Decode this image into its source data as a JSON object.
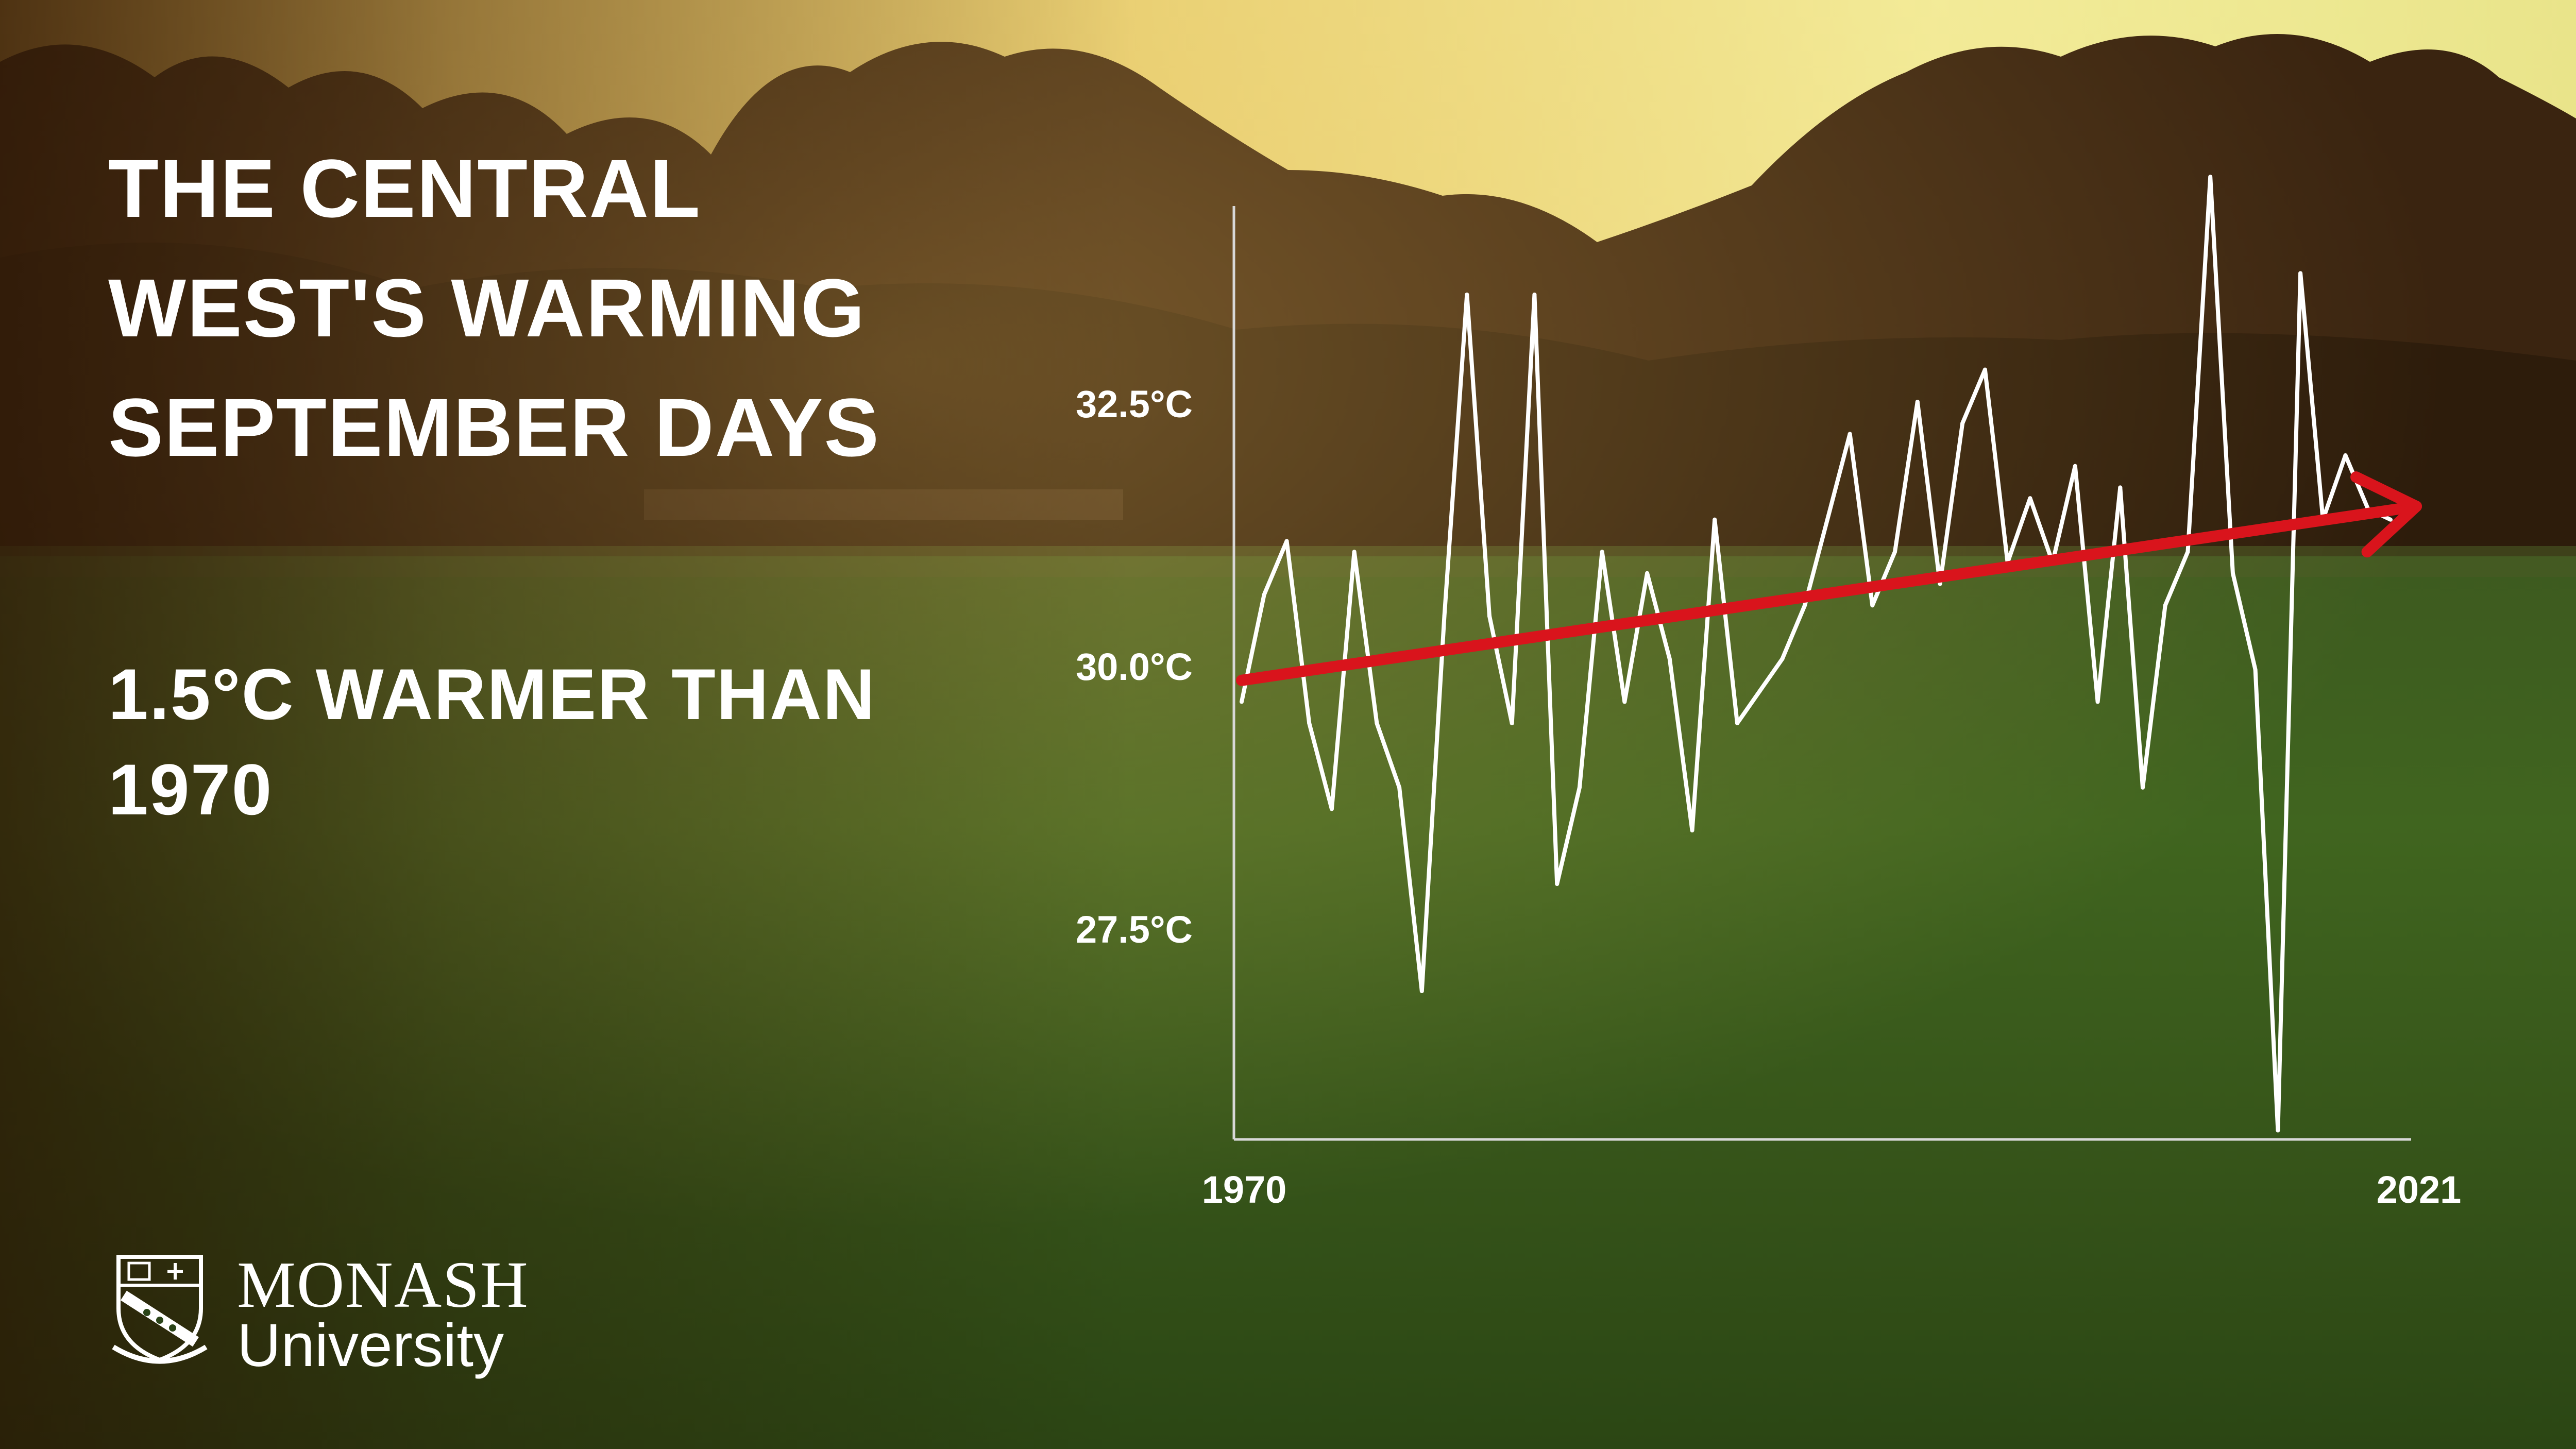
{
  "title_lines": [
    "THE CENTRAL",
    "WEST'S WARMING",
    "SEPTEMBER DAYS"
  ],
  "subtitle_lines": [
    "1.5°C WARMER THAN",
    "1970"
  ],
  "logo": {
    "line1": "MONASH",
    "line2": "University"
  },
  "colors": {
    "line": "#ffffff",
    "trend": "#d9141c",
    "axis": "#d8d8d8",
    "text": "#ffffff"
  },
  "chart_data": {
    "type": "line",
    "title": "THE CENTRAL WEST'S WARMING SEPTEMBER DAYS",
    "xlabel": "",
    "ylabel": "",
    "x_tick_labels": [
      "1970",
      "2021"
    ],
    "y_tick_labels": [
      "32.5°C",
      "30.0°C",
      "27.5°C"
    ],
    "y_ticks": [
      32.5,
      30.0,
      27.5
    ],
    "xlim": [
      1970,
      2021
    ],
    "ylim": [
      25.7,
      34.5
    ],
    "grid": false,
    "series": [
      {
        "x": [
          1970,
          1971,
          1972,
          1973,
          1974,
          1975,
          1976,
          1977,
          1978,
          1979,
          1980,
          1981,
          1982,
          1983,
          1984,
          1985,
          1986,
          1987,
          1988,
          1989,
          1990,
          1991,
          1992,
          1993,
          1994,
          1995,
          1996,
          1997,
          1998,
          1999,
          2000,
          2001,
          2002,
          2003,
          2004,
          2005,
          2006,
          2007,
          2008,
          2009,
          2010,
          2011,
          2012,
          2013,
          2014,
          2015,
          2016,
          2017,
          2018,
          2019,
          2020,
          2021
        ],
        "values": [
          29.7,
          30.7,
          31.2,
          29.5,
          28.7,
          31.1,
          29.5,
          28.9,
          27.0,
          30.5,
          33.5,
          30.5,
          29.5,
          33.5,
          28.0,
          28.9,
          31.1,
          29.7,
          30.9,
          30.1,
          28.5,
          31.4,
          29.5,
          29.8,
          30.1,
          30.6,
          31.4,
          32.2,
          30.6,
          31.1,
          32.5,
          30.8,
          32.3,
          32.8,
          31.0,
          31.6,
          31.0,
          31.9,
          29.7,
          31.7,
          28.9,
          30.6,
          31.1,
          34.6,
          30.9,
          30.0,
          25.7,
          33.7,
          31.4,
          32.0,
          31.5,
          31.4
        ]
      }
    ],
    "trend": {
      "start": [
        1970,
        29.9
      ],
      "end": [
        2021,
        31.5
      ],
      "change_label": "1.5°C WARMER THAN 1970"
    }
  }
}
